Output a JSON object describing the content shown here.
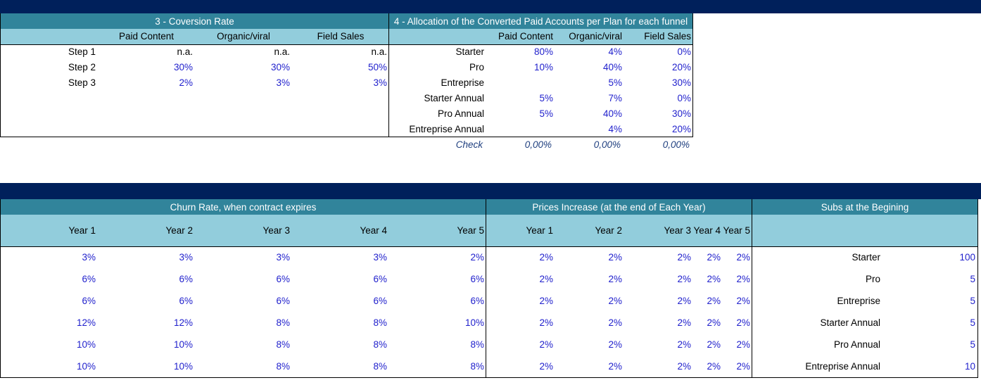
{
  "conversion": {
    "title": "3 - Coversion  Rate",
    "columns": [
      "Paid Content",
      "Organic/viral",
      "Field Sales"
    ],
    "rows": [
      {
        "label": "Step 1",
        "values": [
          "n.a.",
          "n.a.",
          "n.a."
        ]
      },
      {
        "label": "Step 2",
        "values": [
          "30%",
          "30%",
          "50%"
        ]
      },
      {
        "label": "Step 3",
        "values": [
          "2%",
          "3%",
          "3%"
        ]
      }
    ]
  },
  "allocation": {
    "title": "4 - Allocation of the Converted Paid Accounts per Plan for each funnel",
    "columns": [
      "Paid Content",
      "Organic/viral",
      "Field Sales"
    ],
    "rows": [
      {
        "label": "Starter",
        "values": [
          "80%",
          "4%",
          "0%"
        ]
      },
      {
        "label": "Pro",
        "values": [
          "10%",
          "40%",
          "20%"
        ]
      },
      {
        "label": "Entreprise",
        "values": [
          "",
          "5%",
          "30%"
        ]
      },
      {
        "label": "Starter Annual",
        "values": [
          "5%",
          "7%",
          "0%"
        ]
      },
      {
        "label": "Pro Annual",
        "values": [
          "5%",
          "40%",
          "30%"
        ]
      },
      {
        "label": "Entreprise Annual",
        "values": [
          "",
          "4%",
          "20%"
        ]
      }
    ],
    "check": {
      "label": "Check",
      "values": [
        "0,00%",
        "0,00%",
        "0,00%"
      ]
    }
  },
  "churn": {
    "title": "Churn Rate,  when contract expires",
    "columns": [
      "Year 1",
      "Year 2",
      "Year 3",
      "Year 4",
      "Year 5"
    ],
    "rows": [
      [
        "3%",
        "3%",
        "3%",
        "3%",
        "2%"
      ],
      [
        "6%",
        "6%",
        "6%",
        "6%",
        "6%"
      ],
      [
        "6%",
        "6%",
        "6%",
        "6%",
        "6%"
      ],
      [
        "12%",
        "12%",
        "8%",
        "8%",
        "10%"
      ],
      [
        "10%",
        "10%",
        "8%",
        "8%",
        "8%"
      ],
      [
        "10%",
        "10%",
        "8%",
        "8%",
        "8%"
      ]
    ]
  },
  "prices": {
    "title": "Prices Increase (at the end of Each Year)",
    "columns": [
      "Year 1",
      "Year 2",
      "Year 3",
      "Year 4",
      "Year 5"
    ],
    "rows": [
      [
        "2%",
        "2%",
        "2%",
        "2%",
        "2%"
      ],
      [
        "2%",
        "2%",
        "2%",
        "2%",
        "2%"
      ],
      [
        "2%",
        "2%",
        "2%",
        "2%",
        "2%"
      ],
      [
        "2%",
        "2%",
        "2%",
        "2%",
        "2%"
      ],
      [
        "2%",
        "2%",
        "2%",
        "2%",
        "2%"
      ],
      [
        "2%",
        "2%",
        "2%",
        "2%",
        "2%"
      ]
    ]
  },
  "subs": {
    "title": "Subs at the Begining",
    "rows": [
      {
        "label": "Starter",
        "value": "100"
      },
      {
        "label": "Pro",
        "value": "5"
      },
      {
        "label": "Entreprise",
        "value": "5"
      },
      {
        "label": "Starter Annual",
        "value": "5"
      },
      {
        "label": "Pro Annual",
        "value": "5"
      },
      {
        "label": "Entreprise Annual",
        "value": "10"
      }
    ]
  },
  "colors": {
    "band": "#00205b",
    "header": "#31849b",
    "subheader": "#92cddc",
    "input_value": "#1f1fcc"
  }
}
